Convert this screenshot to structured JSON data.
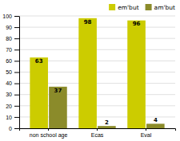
{
  "chart_data": {
    "type": "bar",
    "categories": [
      "non school age",
      "Ecas",
      "Eval"
    ],
    "series": [
      {
        "name": "em'but",
        "color": "#cccc00",
        "values": [
          63,
          98,
          96
        ]
      },
      {
        "name": "am'but",
        "color": "#8b8b2a",
        "values": [
          37,
          2,
          4
        ]
      }
    ],
    "ylim": [
      0,
      100
    ],
    "yticks": [
      0,
      10,
      20,
      30,
      40,
      50,
      60,
      70,
      80,
      90,
      100
    ],
    "grid": true,
    "legend": "upper right",
    "data_labels": true
  }
}
